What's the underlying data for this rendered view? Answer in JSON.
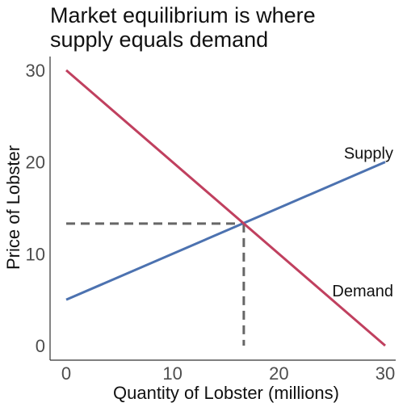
{
  "chart_data": {
    "type": "line",
    "title_lines": [
      "Market equilibrium is where",
      "supply equals demand"
    ],
    "xlabel": "Quantity of Lobster (millions)",
    "ylabel": "Price of Lobster",
    "xlim": [
      0,
      30
    ],
    "ylim": [
      0,
      30
    ],
    "xticks": [
      0,
      10,
      20,
      30
    ],
    "yticks": [
      0,
      10,
      20,
      30
    ],
    "grid": false,
    "series": [
      {
        "name": "Supply",
        "color": "#4c72b0",
        "x": [
          0,
          30
        ],
        "y": [
          5,
          20
        ]
      },
      {
        "name": "Demand",
        "color": "#c0405f",
        "x": [
          0,
          30
        ],
        "y": [
          30,
          0
        ]
      }
    ],
    "equilibrium": {
      "x": 16.7,
      "y": 13.3
    },
    "annotations": [
      {
        "text": "Supply",
        "x": 30,
        "y": 21
      },
      {
        "text": "Demand",
        "x": 30,
        "y": 6
      }
    ]
  }
}
